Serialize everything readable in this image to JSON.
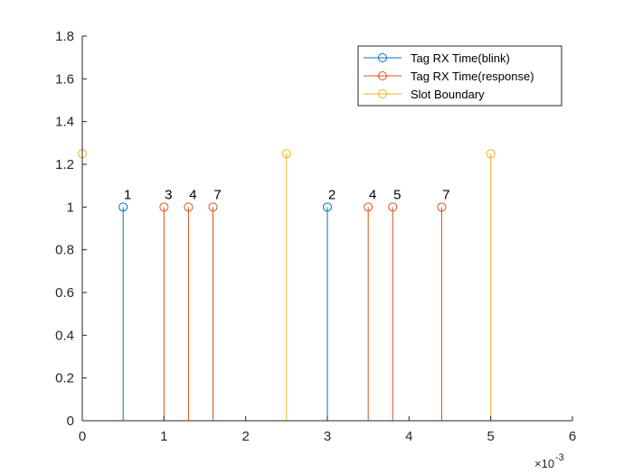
{
  "chart_data": {
    "type": "stem",
    "xlim": [
      0,
      6
    ],
    "ylim": [
      0,
      1.8
    ],
    "x_exponent_label": "×10",
    "x_exponent_power": "-3",
    "x_ticks": [
      0,
      1,
      2,
      3,
      4,
      5,
      6
    ],
    "y_ticks": [
      "0",
      "0.2",
      "0.4",
      "0.6",
      "0.8",
      "1",
      "1.2",
      "1.4",
      "1.6",
      "1.8"
    ],
    "legend_position": "top-right",
    "series": [
      {
        "name": "Tag RX Time(blink)",
        "color": "#0072BD",
        "points": [
          {
            "x": 0.5,
            "y": 1,
            "label": "1"
          },
          {
            "x": 3.0,
            "y": 1,
            "label": "2"
          }
        ]
      },
      {
        "name": "Tag RX Time(response)",
        "color": "#D95319",
        "points": [
          {
            "x": 1.0,
            "y": 1,
            "label": "3"
          },
          {
            "x": 1.3,
            "y": 1,
            "label": "4"
          },
          {
            "x": 1.6,
            "y": 1,
            "label": "7"
          },
          {
            "x": 3.5,
            "y": 1,
            "label": "4"
          },
          {
            "x": 3.8,
            "y": 1,
            "label": "5"
          },
          {
            "x": 4.4,
            "y": 1,
            "label": "7"
          }
        ]
      },
      {
        "name": "Slot Boundary",
        "color": "#EDB120",
        "points": [
          {
            "x": 0.0,
            "y": 1.25
          },
          {
            "x": 2.5,
            "y": 1.25
          },
          {
            "x": 5.0,
            "y": 1.25
          }
        ]
      }
    ]
  }
}
